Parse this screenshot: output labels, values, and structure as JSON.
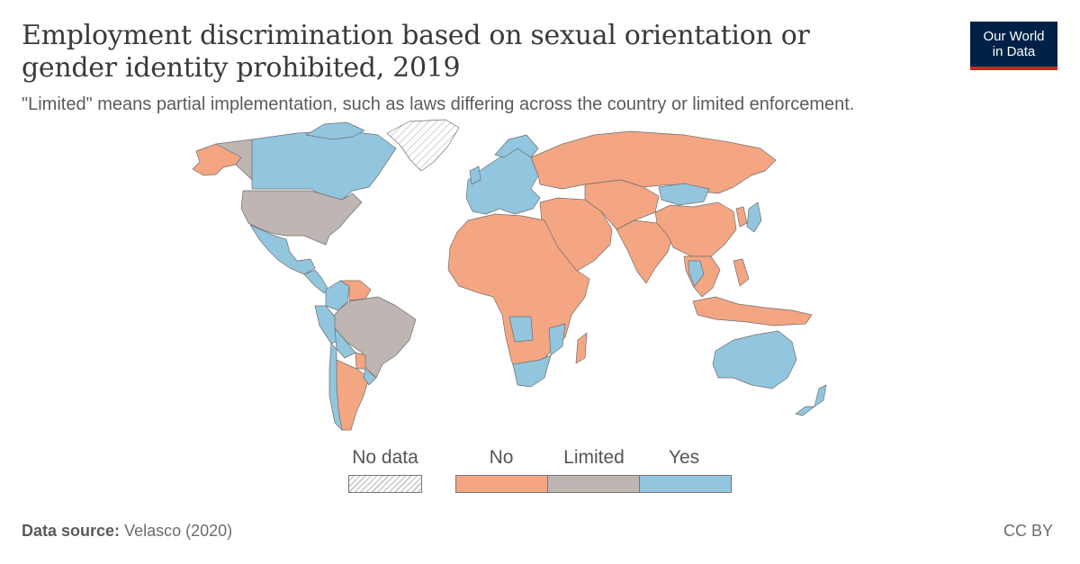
{
  "header": {
    "title": "Employment discrimination based on sexual orientation or gender identity prohibited, 2019",
    "subtitle": "\"Limited\" means partial implementation, such as laws differing across the country or limited enforcement."
  },
  "logo": {
    "line1": "Our World",
    "line2": "in Data",
    "background": "#002147",
    "accent": "#ce261e"
  },
  "legend": {
    "no_data": {
      "label": "No data",
      "pattern": "hatched"
    },
    "categories": [
      {
        "label": "No",
        "color": "#f4a582"
      },
      {
        "label": "Limited",
        "color": "#bfb5b2"
      },
      {
        "label": "Yes",
        "color": "#92c5de"
      }
    ]
  },
  "map": {
    "regions": [
      {
        "name": "Canada",
        "category": "Yes"
      },
      {
        "name": "Greenland",
        "category": "No data"
      },
      {
        "name": "United States",
        "category": "Limited"
      },
      {
        "name": "Mexico",
        "category": "Yes"
      },
      {
        "name": "Central America",
        "category": "Yes"
      },
      {
        "name": "Colombia",
        "category": "Yes"
      },
      {
        "name": "Venezuela",
        "category": "No"
      },
      {
        "name": "Brazil",
        "category": "Limited"
      },
      {
        "name": "Peru",
        "category": "Yes"
      },
      {
        "name": "Bolivia",
        "category": "Yes"
      },
      {
        "name": "Chile",
        "category": "Yes"
      },
      {
        "name": "Argentina",
        "category": "No"
      },
      {
        "name": "Paraguay",
        "category": "No"
      },
      {
        "name": "Uruguay",
        "category": "Yes"
      },
      {
        "name": "Europe",
        "category": "Yes"
      },
      {
        "name": "Russia",
        "category": "No"
      },
      {
        "name": "Africa",
        "category": "No"
      },
      {
        "name": "Angola",
        "category": "Yes"
      },
      {
        "name": "Mozambique",
        "category": "Yes"
      },
      {
        "name": "South Africa",
        "category": "Yes"
      },
      {
        "name": "Madagascar",
        "category": "No"
      },
      {
        "name": "Middle East",
        "category": "No"
      },
      {
        "name": "Central Asia",
        "category": "No"
      },
      {
        "name": "India",
        "category": "No"
      },
      {
        "name": "China",
        "category": "No"
      },
      {
        "name": "Mongolia",
        "category": "Yes"
      },
      {
        "name": "Japan",
        "category": "Yes"
      },
      {
        "name": "Korea",
        "category": "No"
      },
      {
        "name": "Southeast Asia",
        "category": "No"
      },
      {
        "name": "Thailand",
        "category": "Yes"
      },
      {
        "name": "Indonesia",
        "category": "No"
      },
      {
        "name": "Australia",
        "category": "Yes"
      },
      {
        "name": "New Zealand",
        "category": "Yes"
      }
    ]
  },
  "footer": {
    "source_label": "Data source:",
    "source_value": "Velasco (2020)",
    "license": "CC BY"
  }
}
